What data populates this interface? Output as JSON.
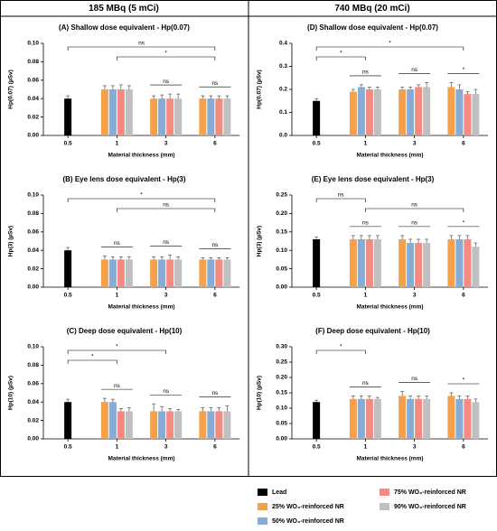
{
  "headers": [
    "185 MBq (5 mCi)",
    "740 MBq (20 mCi)"
  ],
  "chart_data": [
    {
      "type": "bar",
      "title": "(A) Shallow dose equivalent - Hp(0.07)",
      "ylabel": "Hp(0.07) (µSv)",
      "xlabel": "Material thickness (mm)",
      "categories": [
        "0.5",
        "1",
        "3",
        "6"
      ],
      "ylim": [
        0,
        0.1
      ],
      "yticks": [
        {
          "value": 0,
          "label": "0.00"
        },
        0.02,
        0.04,
        0.06,
        0.08,
        {
          "value": 0.1,
          "label": "0.10"
        }
      ],
      "series": [
        {
          "name": "Lead",
          "color": "#000000",
          "values": [
            0.04,
            null,
            null,
            null
          ],
          "errors": [
            0.003,
            null,
            null,
            null
          ]
        },
        {
          "name": "25% WO₃-reinforced NR",
          "color": "#f5a04a",
          "values": [
            null,
            0.05,
            0.04,
            0.04
          ],
          "errors": [
            null,
            0.004,
            0.003,
            0.003
          ]
        },
        {
          "name": "50% WO₃-reinforced NR",
          "color": "#86acd6",
          "values": [
            null,
            0.05,
            0.04,
            0.04
          ],
          "errors": [
            null,
            0.004,
            0.004,
            0.003
          ]
        },
        {
          "name": "75% WO₃-reinforced NR",
          "color": "#f48a80",
          "values": [
            null,
            0.05,
            0.04,
            0.04
          ],
          "errors": [
            null,
            0.005,
            0.005,
            0.003
          ]
        },
        {
          "name": "90% WO₃-reinforced NR",
          "color": "#c0c0c0",
          "values": [
            null,
            0.05,
            0.04,
            0.04
          ],
          "errors": [
            null,
            0.004,
            0.005,
            0.003
          ]
        }
      ],
      "annotations": [
        {
          "text": "ns",
          "from": "0.5",
          "to": "6"
        },
        {
          "text": "*",
          "from": "1",
          "to": "6"
        },
        {
          "text": "ns",
          "from": "3",
          "to": "3"
        },
        {
          "text": "ns",
          "from": "6",
          "to": "6"
        }
      ]
    },
    {
      "type": "bar",
      "title": "(B) Eye lens dose equivalent - Hp(3)",
      "ylabel": "Hp(3) (µSv)",
      "xlabel": "Material thickness (mm)",
      "categories": [
        "0.5",
        "1",
        "3",
        "6"
      ],
      "ylim": [
        0,
        0.1
      ],
      "yticks": [
        {
          "value": 0,
          "label": "0.00"
        },
        0.02,
        0.04,
        0.06,
        0.08,
        {
          "value": 0.1,
          "label": "0.10"
        }
      ],
      "series": [
        {
          "name": "Lead",
          "color": "#000000",
          "values": [
            0.04,
            null,
            null,
            null
          ],
          "errors": [
            0.003,
            null,
            null,
            null
          ]
        },
        {
          "name": "25% WO₃-reinforced NR",
          "color": "#f5a04a",
          "values": [
            null,
            0.03,
            0.03,
            0.03
          ],
          "errors": [
            null,
            0.004,
            0.003,
            0.002
          ]
        },
        {
          "name": "50% WO₃-reinforced NR",
          "color": "#86acd6",
          "values": [
            null,
            0.03,
            0.03,
            0.03
          ],
          "errors": [
            null,
            0.003,
            0.003,
            0.002
          ]
        },
        {
          "name": "75% WO₃-reinforced NR",
          "color": "#f48a80",
          "values": [
            null,
            0.03,
            0.03,
            0.03
          ],
          "errors": [
            null,
            0.003,
            0.005,
            0.002
          ]
        },
        {
          "name": "90% WO₃-reinforced NR",
          "color": "#c0c0c0",
          "values": [
            null,
            0.03,
            0.03,
            0.03
          ],
          "errors": [
            null,
            0.003,
            0.003,
            0.002
          ]
        }
      ],
      "annotations": [
        {
          "text": "*",
          "from": "0.5",
          "to": "6"
        },
        {
          "text": "ns",
          "from": "1",
          "to": "6"
        },
        {
          "text": "ns",
          "from": "1",
          "to": "1"
        },
        {
          "text": "ns",
          "from": "3",
          "to": "3"
        },
        {
          "text": "ns",
          "from": "6",
          "to": "6"
        }
      ]
    },
    {
      "type": "bar",
      "title": "(C) Deep dose equivalent - Hp(10)",
      "ylabel": "Hp(10) (µSv)",
      "xlabel": "Material thickness (mm)",
      "categories": [
        "0.5",
        "1",
        "3",
        "6"
      ],
      "ylim": [
        0,
        0.1
      ],
      "yticks": [
        {
          "value": 0,
          "label": "0.00"
        },
        0.02,
        0.04,
        0.06,
        0.08,
        {
          "value": 0.1,
          "label": "0.10"
        }
      ],
      "series": [
        {
          "name": "Lead",
          "color": "#000000",
          "values": [
            0.04,
            null,
            null,
            null
          ],
          "errors": [
            0.003,
            null,
            null,
            null
          ]
        },
        {
          "name": "25% WO₃-reinforced NR",
          "color": "#f5a04a",
          "values": [
            null,
            0.04,
            0.03,
            0.03
          ],
          "errors": [
            null,
            0.004,
            0.008,
            0.004
          ]
        },
        {
          "name": "50% WO₃-reinforced NR",
          "color": "#86acd6",
          "values": [
            null,
            0.04,
            0.03,
            0.03
          ],
          "errors": [
            null,
            0.003,
            0.005,
            0.004
          ]
        },
        {
          "name": "75% WO₃-reinforced NR",
          "color": "#f48a80",
          "values": [
            null,
            0.03,
            0.03,
            0.03
          ],
          "errors": [
            null,
            0.003,
            0.003,
            0.004
          ]
        },
        {
          "name": "90% WO₃-reinforced NR",
          "color": "#c0c0c0",
          "values": [
            null,
            0.03,
            0.03,
            0.03
          ],
          "errors": [
            null,
            0.004,
            0.002,
            0.006
          ]
        }
      ],
      "annotations": [
        {
          "text": "*",
          "from": "0.5",
          "to": "3"
        },
        {
          "text": "*",
          "from": "0.5",
          "to": "1"
        },
        {
          "text": "ns",
          "from": "1",
          "to": "1"
        },
        {
          "text": "ns",
          "from": "3",
          "to": "3"
        },
        {
          "text": "ns",
          "from": "6",
          "to": "6"
        }
      ]
    },
    {
      "type": "bar",
      "title": "(D) Shallow dose equivalent - Hp(0.07)",
      "ylabel": "Hp(0.07) (µSv)",
      "xlabel": "Material thickness (mm)",
      "categories": [
        "0.5",
        "1",
        "3",
        "6"
      ],
      "ylim": [
        0,
        0.4
      ],
      "yticks": [
        {
          "value": 0,
          "label": "0.0"
        },
        0.1,
        0.2,
        0.3,
        0.4
      ],
      "series": [
        {
          "name": "Lead",
          "color": "#000000",
          "values": [
            0.15,
            null,
            null,
            null
          ],
          "errors": [
            0.01,
            null,
            null,
            null
          ]
        },
        {
          "name": "25% WO₃-reinforced NR",
          "color": "#f5a04a",
          "values": [
            null,
            0.19,
            0.2,
            0.21
          ],
          "errors": [
            null,
            0.01,
            0.01,
            0.02
          ]
        },
        {
          "name": "50% WO₃-reinforced NR",
          "color": "#86acd6",
          "values": [
            null,
            0.21,
            0.2,
            0.2
          ],
          "errors": [
            null,
            0.01,
            0.01,
            0.02
          ]
        },
        {
          "name": "75% WO₃-reinforced NR",
          "color": "#f48a80",
          "values": [
            null,
            0.2,
            0.21,
            0.18
          ],
          "errors": [
            null,
            0.01,
            0.01,
            0.01
          ]
        },
        {
          "name": "90% WO₃-reinforced NR",
          "color": "#c0c0c0",
          "values": [
            null,
            0.2,
            0.21,
            0.18
          ],
          "errors": [
            null,
            0.01,
            0.02,
            0.02
          ]
        }
      ],
      "annotations": [
        {
          "text": "*",
          "from": "0.5",
          "to": "6"
        },
        {
          "text": "*",
          "from": "0.5",
          "to": "1"
        },
        {
          "text": "ns",
          "from": "1",
          "to": "1"
        },
        {
          "text": "ns",
          "from": "3",
          "to": "3"
        },
        {
          "text": "*",
          "from": "6",
          "to": "6"
        }
      ]
    },
    {
      "type": "bar",
      "title": "(E) Eye lens dose equivalent - Hp(3)",
      "ylabel": "Hp(3) (µSv)",
      "xlabel": "Material thickness (mm)",
      "categories": [
        "0.5",
        "1",
        "3",
        "6"
      ],
      "ylim": [
        0,
        0.25
      ],
      "yticks": [
        {
          "value": 0,
          "label": "0.00"
        },
        0.05,
        {
          "value": 0.1,
          "label": "0.10"
        },
        0.15,
        {
          "value": 0.2,
          "label": "0.20"
        },
        0.25
      ],
      "series": [
        {
          "name": "Lead",
          "color": "#000000",
          "values": [
            0.13,
            null,
            null,
            null
          ],
          "errors": [
            0.006,
            null,
            null,
            null
          ]
        },
        {
          "name": "25% WO₃-reinforced NR",
          "color": "#f5a04a",
          "values": [
            null,
            0.13,
            0.13,
            0.13
          ],
          "errors": [
            null,
            0.01,
            0.01,
            0.01
          ]
        },
        {
          "name": "50% WO₃-reinforced NR",
          "color": "#86acd6",
          "values": [
            null,
            0.13,
            0.12,
            0.13
          ],
          "errors": [
            null,
            0.01,
            0.01,
            0.01
          ]
        },
        {
          "name": "75% WO₃-reinforced NR",
          "color": "#f48a80",
          "values": [
            null,
            0.13,
            0.12,
            0.13
          ],
          "errors": [
            null,
            0.01,
            0.01,
            0.01
          ]
        },
        {
          "name": "90% WO₃-reinforced NR",
          "color": "#c0c0c0",
          "values": [
            null,
            0.13,
            0.12,
            0.11
          ],
          "errors": [
            null,
            0.01,
            0.01,
            0.01
          ]
        }
      ],
      "annotations": [
        {
          "text": "ns",
          "from": "0.5",
          "to": "1"
        },
        {
          "text": "ns",
          "from": "1",
          "to": "6"
        },
        {
          "text": "ns",
          "from": "1",
          "to": "1"
        },
        {
          "text": "ns",
          "from": "3",
          "to": "3"
        },
        {
          "text": "*",
          "from": "6",
          "to": "6"
        }
      ]
    },
    {
      "type": "bar",
      "title": "(F) Deep dose equivalent - Hp(10)",
      "ylabel": "Hp(10) (µSv)",
      "xlabel": "Material thickness (mm)",
      "categories": [
        "0.5",
        "1",
        "3",
        "6"
      ],
      "ylim": [
        0,
        0.3
      ],
      "yticks": [
        {
          "value": 0,
          "label": "0.00"
        },
        0.05,
        {
          "value": 0.1,
          "label": "0.10"
        },
        0.15,
        {
          "value": 0.2,
          "label": "0.20"
        },
        0.25,
        {
          "value": 0.3,
          "label": "0.30"
        }
      ],
      "series": [
        {
          "name": "Lead",
          "color": "#000000",
          "values": [
            0.12,
            null,
            null,
            null
          ],
          "errors": [
            0.006,
            null,
            null,
            null
          ]
        },
        {
          "name": "25% WO₃-reinforced NR",
          "color": "#f5a04a",
          "values": [
            null,
            0.13,
            0.14,
            0.14
          ],
          "errors": [
            null,
            0.01,
            0.015,
            0.01
          ]
        },
        {
          "name": "50% WO₃-reinforced NR",
          "color": "#86acd6",
          "values": [
            null,
            0.13,
            0.13,
            0.13
          ],
          "errors": [
            null,
            0.01,
            0.01,
            0.01
          ]
        },
        {
          "name": "75% WO₃-reinforced NR",
          "color": "#f48a80",
          "values": [
            null,
            0.13,
            0.13,
            0.13
          ],
          "errors": [
            null,
            0.01,
            0.01,
            0.01
          ]
        },
        {
          "name": "90% WO₃-reinforced NR",
          "color": "#c0c0c0",
          "values": [
            null,
            0.13,
            0.13,
            0.12
          ],
          "errors": [
            null,
            0.005,
            0.01,
            0.01
          ]
        }
      ],
      "annotations": [
        {
          "text": "*",
          "from": "0.5",
          "to": "1"
        },
        {
          "text": "ns",
          "from": "1",
          "to": "1"
        },
        {
          "text": "ns",
          "from": "3",
          "to": "3"
        },
        {
          "text": "*",
          "from": "6",
          "to": "6"
        }
      ]
    }
  ]
}
